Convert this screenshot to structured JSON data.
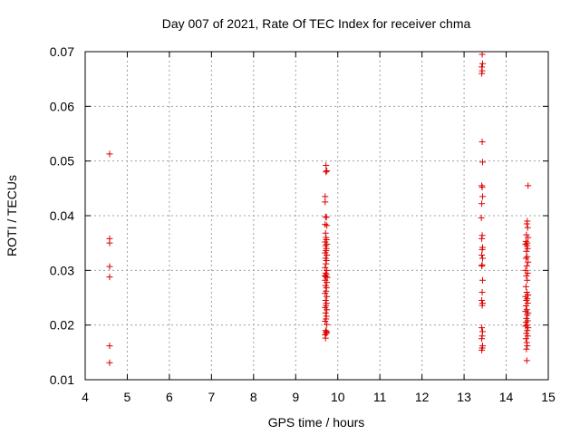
{
  "chart_data": {
    "type": "scatter",
    "title": "Day 007 of 2021, Rate Of TEC Index for receiver chma",
    "xlabel": "GPS time / hours",
    "ylabel": "ROTI / TECUs",
    "xlim": [
      4,
      15
    ],
    "ylim": [
      0.01,
      0.07
    ],
    "xticks": [
      "4",
      "5",
      "6",
      "7",
      "8",
      "9",
      "10",
      "11",
      "12",
      "13",
      "14",
      "15"
    ],
    "yticks": [
      "0.01",
      "0.02",
      "0.03",
      "0.04",
      "0.05",
      "0.06",
      "0.07"
    ],
    "grid": true,
    "marker": "plus",
    "colors": {
      "points": "#dd0000",
      "grid": "#a0a0a0",
      "axis": "#000000"
    },
    "series": [
      {
        "points": [
          [
            4.58,
            0.0513
          ],
          [
            4.58,
            0.0358
          ],
          [
            4.58,
            0.035
          ],
          [
            4.58,
            0.0307
          ],
          [
            4.58,
            0.0288
          ],
          [
            4.58,
            0.0162
          ],
          [
            4.58,
            0.0131
          ],
          [
            9.72,
            0.0492
          ],
          [
            9.74,
            0.0482
          ],
          [
            9.72,
            0.048
          ],
          [
            9.7,
            0.0435
          ],
          [
            9.7,
            0.0425
          ],
          [
            9.71,
            0.0398
          ],
          [
            9.73,
            0.0397
          ],
          [
            9.7,
            0.0384
          ],
          [
            9.74,
            0.0382
          ],
          [
            9.71,
            0.0368
          ],
          [
            9.72,
            0.036
          ],
          [
            9.73,
            0.0356
          ],
          [
            9.7,
            0.0352
          ],
          [
            9.74,
            0.0348
          ],
          [
            9.71,
            0.0345
          ],
          [
            9.73,
            0.034
          ],
          [
            9.72,
            0.0336
          ],
          [
            9.7,
            0.0332
          ],
          [
            9.74,
            0.0328
          ],
          [
            9.71,
            0.0322
          ],
          [
            9.73,
            0.0318
          ],
          [
            9.72,
            0.0312
          ],
          [
            9.7,
            0.0305
          ],
          [
            9.74,
            0.03
          ],
          [
            9.71,
            0.0295
          ],
          [
            9.73,
            0.0292
          ],
          [
            9.69,
            0.029
          ],
          [
            9.72,
            0.0288
          ],
          [
            9.75,
            0.0287
          ],
          [
            9.7,
            0.0282
          ],
          [
            9.74,
            0.0278
          ],
          [
            9.71,
            0.0272
          ],
          [
            9.73,
            0.0268
          ],
          [
            9.72,
            0.0262
          ],
          [
            9.7,
            0.0258
          ],
          [
            9.74,
            0.0252
          ],
          [
            9.71,
            0.0245
          ],
          [
            9.73,
            0.024
          ],
          [
            9.72,
            0.0236
          ],
          [
            9.7,
            0.0232
          ],
          [
            9.74,
            0.0228
          ],
          [
            9.71,
            0.0222
          ],
          [
            9.73,
            0.0216
          ],
          [
            9.72,
            0.0211
          ],
          [
            9.7,
            0.0207
          ],
          [
            9.74,
            0.0201
          ],
          [
            9.71,
            0.019
          ],
          [
            9.73,
            0.0188
          ],
          [
            9.72,
            0.0185
          ],
          [
            9.7,
            0.0182
          ],
          [
            9.74,
            0.0186
          ],
          [
            9.71,
            0.0176
          ],
          [
            13.43,
            0.0695
          ],
          [
            13.44,
            0.0678
          ],
          [
            13.42,
            0.0672
          ],
          [
            13.43,
            0.0665
          ],
          [
            13.42,
            0.066
          ],
          [
            13.43,
            0.0535
          ],
          [
            13.44,
            0.0498
          ],
          [
            13.42,
            0.0455
          ],
          [
            13.43,
            0.0452
          ],
          [
            13.44,
            0.0435
          ],
          [
            13.42,
            0.0422
          ],
          [
            13.41,
            0.0396
          ],
          [
            13.43,
            0.0364
          ],
          [
            13.42,
            0.0358
          ],
          [
            13.44,
            0.0342
          ],
          [
            13.43,
            0.0338
          ],
          [
            13.42,
            0.0328
          ],
          [
            13.44,
            0.0322
          ],
          [
            13.43,
            0.031
          ],
          [
            13.42,
            0.0308
          ],
          [
            13.44,
            0.0282
          ],
          [
            13.43,
            0.026
          ],
          [
            13.42,
            0.0245
          ],
          [
            13.44,
            0.024
          ],
          [
            13.43,
            0.0236
          ],
          [
            13.42,
            0.0195
          ],
          [
            13.44,
            0.0188
          ],
          [
            13.43,
            0.018
          ],
          [
            13.42,
            0.0175
          ],
          [
            13.44,
            0.0162
          ],
          [
            13.43,
            0.0158
          ],
          [
            13.42,
            0.0154
          ],
          [
            14.52,
            0.0455
          ],
          [
            14.5,
            0.039
          ],
          [
            14.49,
            0.0385
          ],
          [
            14.51,
            0.0378
          ],
          [
            14.48,
            0.0365
          ],
          [
            14.52,
            0.036
          ],
          [
            14.47,
            0.0353
          ],
          [
            14.5,
            0.035
          ],
          [
            14.46,
            0.0348
          ],
          [
            14.49,
            0.0345
          ],
          [
            14.51,
            0.034
          ],
          [
            14.48,
            0.0335
          ],
          [
            14.5,
            0.0325
          ],
          [
            14.47,
            0.0322
          ],
          [
            14.52,
            0.0315
          ],
          [
            14.49,
            0.0308
          ],
          [
            14.46,
            0.03
          ],
          [
            14.51,
            0.0295
          ],
          [
            14.48,
            0.029
          ],
          [
            14.5,
            0.0282
          ],
          [
            14.47,
            0.027
          ],
          [
            14.49,
            0.026
          ],
          [
            14.52,
            0.0255
          ],
          [
            14.46,
            0.0252
          ],
          [
            14.5,
            0.0248
          ],
          [
            14.48,
            0.0245
          ],
          [
            14.51,
            0.024
          ],
          [
            14.47,
            0.0235
          ],
          [
            14.49,
            0.0228
          ],
          [
            14.46,
            0.0225
          ],
          [
            14.52,
            0.0222
          ],
          [
            14.5,
            0.0218
          ],
          [
            14.48,
            0.0212
          ],
          [
            14.51,
            0.0208
          ],
          [
            14.47,
            0.0205
          ],
          [
            14.49,
            0.02
          ],
          [
            14.46,
            0.0198
          ],
          [
            14.52,
            0.0195
          ],
          [
            14.5,
            0.019
          ],
          [
            14.48,
            0.0185
          ],
          [
            14.51,
            0.018
          ],
          [
            14.47,
            0.0175
          ],
          [
            14.49,
            0.0168
          ],
          [
            14.5,
            0.0162
          ],
          [
            14.48,
            0.0156
          ],
          [
            14.49,
            0.0135
          ]
        ]
      }
    ]
  }
}
